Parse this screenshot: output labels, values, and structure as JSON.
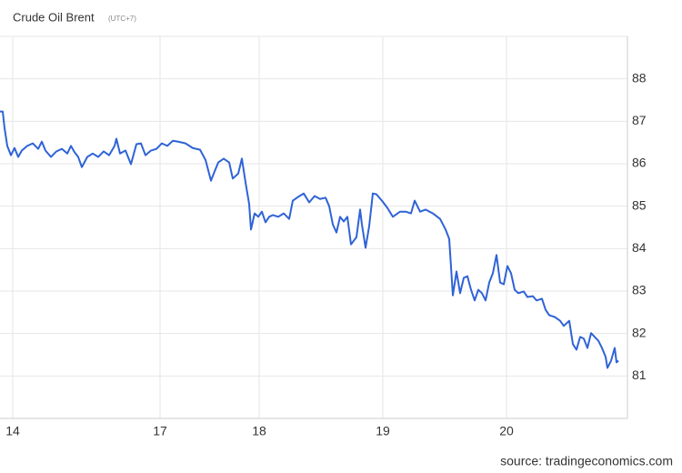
{
  "chart_data": {
    "type": "line",
    "title": "Crude Oil Brent",
    "subtitle": "(UTC+7)",
    "source": "source: tradingeconomics.com",
    "color": "#2f63d6",
    "grid": true,
    "xlim": [
      0,
      690
    ],
    "xticks": [
      {
        "value": 14,
        "label": "14"
      },
      {
        "value": 176,
        "label": "17"
      },
      {
        "value": 285,
        "label": "18"
      },
      {
        "value": 421,
        "label": "19"
      },
      {
        "value": 557,
        "label": "20"
      }
    ],
    "ylim": [
      80,
      89
    ],
    "yticks": [
      81,
      82,
      83,
      84,
      85,
      86,
      87,
      88
    ],
    "x": [
      0,
      3,
      5,
      8,
      12,
      16,
      20,
      24,
      30,
      36,
      42,
      46,
      50,
      56,
      62,
      68,
      74,
      78,
      82,
      86,
      90,
      96,
      102,
      108,
      114,
      120,
      126,
      128,
      132,
      138,
      144,
      150,
      155,
      160,
      166,
      172,
      178,
      184,
      190,
      196,
      204,
      212,
      220,
      226,
      232,
      236,
      240,
      246,
      252,
      256,
      262,
      266,
      270,
      274,
      276,
      280,
      284,
      288,
      292,
      296,
      300,
      306,
      312,
      318,
      322,
      328,
      334,
      340,
      346,
      352,
      358,
      362,
      366,
      370,
      374,
      378,
      382,
      386,
      392,
      396,
      398,
      402,
      406,
      410,
      414,
      420,
      426,
      432,
      440,
      446,
      452,
      456,
      462,
      468,
      476,
      484,
      490,
      494,
      498,
      502,
      506,
      510,
      514,
      518,
      522,
      526,
      530,
      534,
      538,
      542,
      546,
      550,
      554,
      558,
      562,
      566,
      570,
      576,
      580,
      586,
      590,
      596,
      600,
      604,
      610,
      616,
      620,
      626,
      630,
      634,
      638,
      642,
      646,
      650,
      654,
      658,
      662,
      666,
      668,
      672,
      676,
      678,
      680
    ],
    "values": [
      87.23,
      87.23,
      86.84,
      86.42,
      86.2,
      86.37,
      86.16,
      86.31,
      86.42,
      86.48,
      86.35,
      86.52,
      86.31,
      86.16,
      86.29,
      86.35,
      86.24,
      86.42,
      86.27,
      86.16,
      85.92,
      86.16,
      86.24,
      86.16,
      86.29,
      86.2,
      86.42,
      86.59,
      86.24,
      86.31,
      85.99,
      86.46,
      86.48,
      86.2,
      86.31,
      86.35,
      86.48,
      86.42,
      86.54,
      86.52,
      86.48,
      86.37,
      86.33,
      86.09,
      85.6,
      85.82,
      86.03,
      86.12,
      86.03,
      85.65,
      85.77,
      86.12,
      85.56,
      85.05,
      84.45,
      84.83,
      84.75,
      84.87,
      84.62,
      84.75,
      84.79,
      84.75,
      84.83,
      84.7,
      85.13,
      85.22,
      85.3,
      85.09,
      85.24,
      85.17,
      85.2,
      85.0,
      84.57,
      84.38,
      84.75,
      84.64,
      84.75,
      84.1,
      84.27,
      84.92,
      84.57,
      84.02,
      84.53,
      85.3,
      85.28,
      85.13,
      84.96,
      84.75,
      84.87,
      84.87,
      84.83,
      85.13,
      84.87,
      84.92,
      84.83,
      84.7,
      84.45,
      84.23,
      82.9,
      83.46,
      82.95,
      83.31,
      83.35,
      83.03,
      82.78,
      83.03,
      82.95,
      82.78,
      83.2,
      83.42,
      83.85,
      83.2,
      83.16,
      83.59,
      83.42,
      83.03,
      82.95,
      82.99,
      82.86,
      82.88,
      82.78,
      82.82,
      82.56,
      82.43,
      82.39,
      82.3,
      82.18,
      82.3,
      81.75,
      81.62,
      81.92,
      81.88,
      81.66,
      82.01,
      81.92,
      81.83,
      81.66,
      81.45,
      81.19,
      81.36,
      81.66,
      81.32,
      81.36
    ]
  }
}
